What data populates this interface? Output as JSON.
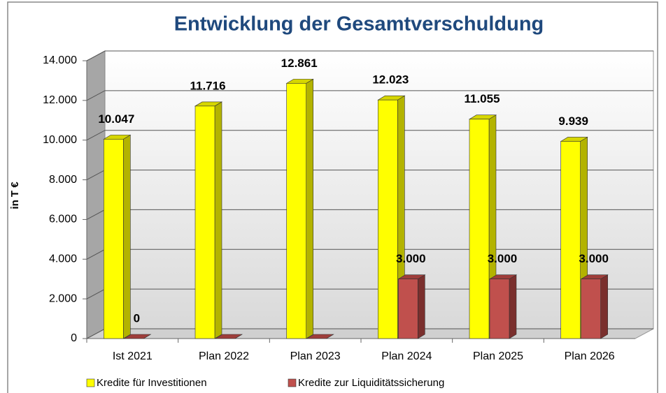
{
  "chart_data": {
    "type": "bar3d",
    "title": "Entwicklung der Gesamtverschuldung",
    "ylabel": "in T €",
    "categories": [
      "Ist 2021",
      "Plan 2022",
      "Plan 2023",
      "Plan 2024",
      "Plan 2025",
      "Plan 2026"
    ],
    "series": [
      {
        "name": "Kredite für Investitionen",
        "color": "#ffff00",
        "values": [
          10047,
          11716,
          12861,
          12023,
          11055,
          9939
        ],
        "value_labels": [
          "10.047",
          "11.716",
          "12.861",
          "12.023",
          "11.055",
          "9.939"
        ]
      },
      {
        "name": "Kredite zur Liquiditätssicherung",
        "color": "#c0504d",
        "values": [
          0,
          0,
          0,
          3000,
          3000,
          3000
        ],
        "value_labels": [
          "0",
          null,
          null,
          "3.000",
          "3.000",
          "3.000"
        ]
      }
    ],
    "ylim": [
      0,
      14000
    ],
    "yticks": [
      0,
      {
        "value": 2000,
        "label": "2.000"
      },
      {
        "value": 4000,
        "label": "4.000"
      },
      {
        "value": 6000,
        "label": "6.000"
      },
      {
        "value": 8000,
        "label": "8.000"
      },
      {
        "value": 10000,
        "label": "10.000"
      },
      {
        "value": 12000,
        "label": "12.000"
      },
      {
        "value": 14000,
        "label": "14.000"
      }
    ],
    "grid": true,
    "legend": "bottom"
  }
}
